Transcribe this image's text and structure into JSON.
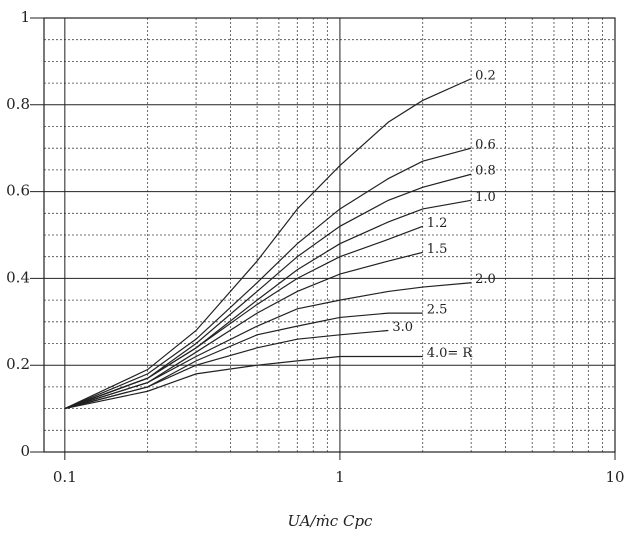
{
  "chart_data": {
    "type": "line",
    "x_label": "UA/ṁc Cpc",
    "log_x": true,
    "grid": true,
    "x": [
      0.1,
      0.2,
      0.3,
      0.5,
      0.7,
      1,
      1.5,
      2,
      3
    ],
    "series": [
      {
        "name": "0.2",
        "color": "#222",
        "values": [
          0.1,
          0.19,
          0.28,
          0.44,
          0.56,
          0.66,
          0.76,
          0.81,
          0.86
        ]
      },
      {
        "name": "0.6",
        "color": "#222",
        "values": [
          0.1,
          0.18,
          0.26,
          0.39,
          0.48,
          0.56,
          0.63,
          0.67,
          0.7
        ]
      },
      {
        "name": "0.8",
        "color": "#222",
        "values": [
          0.1,
          0.17,
          0.25,
          0.37,
          0.45,
          0.52,
          0.58,
          0.61,
          0.64
        ]
      },
      {
        "name": "1.0",
        "color": "#222",
        "values": [
          0.1,
          0.17,
          0.24,
          0.35,
          0.42,
          0.48,
          0.53,
          0.56,
          0.58
        ]
      },
      {
        "name": "1.2",
        "color": "#222",
        "values": [
          0.1,
          0.17,
          0.24,
          0.34,
          0.4,
          0.45,
          0.49,
          0.52,
          null
        ]
      },
      {
        "name": "1.5",
        "color": "#222",
        "values": [
          0.1,
          0.16,
          0.23,
          0.32,
          0.37,
          0.41,
          0.44,
          0.46,
          null
        ]
      },
      {
        "name": "2.0",
        "color": "#222",
        "values": [
          0.1,
          0.16,
          0.22,
          0.29,
          0.33,
          0.35,
          0.37,
          0.38,
          0.39
        ]
      },
      {
        "name": "2.5",
        "color": "#222",
        "values": [
          0.1,
          0.15,
          0.21,
          0.27,
          0.29,
          0.31,
          0.32,
          0.32,
          null
        ]
      },
      {
        "name": "3.0",
        "color": "#222",
        "values": [
          0.1,
          0.15,
          0.2,
          0.24,
          0.26,
          0.27,
          0.28,
          null,
          null
        ]
      },
      {
        "name": "4.0= R",
        "color": "#222",
        "values": [
          0.1,
          0.14,
          0.18,
          0.2,
          0.21,
          0.22,
          0.22,
          0.22,
          null
        ]
      }
    ],
    "xlim": [
      0.084,
      10
    ],
    "ylim": [
      0,
      1
    ],
    "xticks": [
      0.1,
      1,
      10
    ],
    "yticks": [
      0,
      0.2,
      0.4,
      0.6,
      0.8,
      1
    ],
    "x_minor_ticks": [
      0.2,
      0.3,
      0.4,
      0.5,
      0.6,
      0.7,
      0.8,
      0.9,
      2,
      3,
      4,
      5,
      6,
      7,
      8,
      9
    ],
    "y_minor_ticks": [
      0.05,
      0.1,
      0.15,
      0.25,
      0.3,
      0.35,
      0.45,
      0.5,
      0.55,
      0.65,
      0.7,
      0.75,
      0.85,
      0.9,
      0.95
    ]
  }
}
